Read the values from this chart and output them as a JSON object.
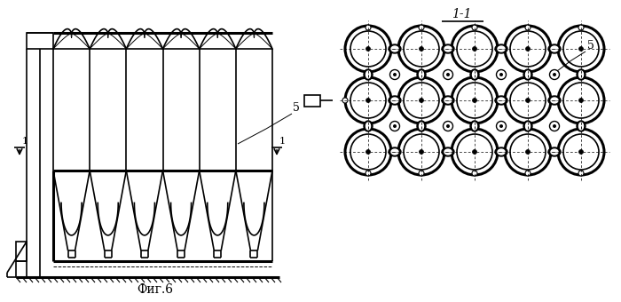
{
  "fig_label": "Фиг.6",
  "section_label": "1-1",
  "bg_color": "#ffffff",
  "line_color": "#000000",
  "lw_main": 1.2,
  "lw_thick": 2.2,
  "lw_thin": 0.7
}
